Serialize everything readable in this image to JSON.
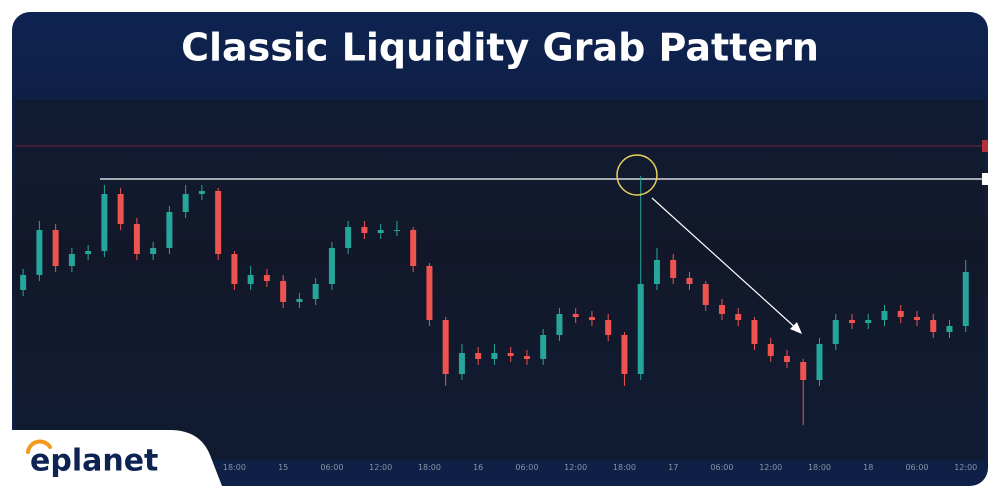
{
  "chart_data": {
    "type": "candlestick",
    "title": "Classic Liquidity Grab Pattern",
    "brand": "eplanet",
    "up_color": "#26a69a",
    "down_color": "#ef5350",
    "xlim": [
      0,
      119
    ],
    "ylim": [
      0,
      100
    ],
    "xticks": [
      {
        "value": 27,
        "label": "18:00"
      },
      {
        "value": 33,
        "label": "15"
      },
      {
        "value": 39,
        "label": "06:00"
      },
      {
        "value": 45,
        "label": "12:00"
      },
      {
        "value": 51,
        "label": "18:00"
      },
      {
        "value": 57,
        "label": "16"
      },
      {
        "value": 63,
        "label": "06:00"
      },
      {
        "value": 69,
        "label": "12:00"
      },
      {
        "value": 75,
        "label": "18:00"
      },
      {
        "value": 81,
        "label": "17"
      },
      {
        "value": 87,
        "label": "06:00"
      },
      {
        "value": 93,
        "label": "12:00"
      },
      {
        "value": 99,
        "label": "18:00"
      },
      {
        "value": 105,
        "label": "18"
      },
      {
        "value": 111,
        "label": "06:00"
      },
      {
        "value": 117,
        "label": "12:00"
      }
    ],
    "levels": [
      {
        "value": 87,
        "color": "#ffffff"
      },
      {
        "value": 98,
        "color": "#b2313a"
      }
    ],
    "x": [
      1,
      3,
      5,
      7,
      9,
      11,
      13,
      15,
      17,
      19,
      21,
      23,
      25,
      27,
      29,
      31,
      33,
      35,
      37,
      39,
      41,
      43,
      45,
      47,
      49,
      51,
      53,
      55,
      57,
      59,
      61,
      63,
      65,
      67,
      69,
      71,
      73,
      75,
      77,
      79,
      81,
      83,
      85,
      87,
      89,
      91,
      93,
      95,
      97,
      99,
      101,
      103,
      105,
      107,
      109,
      111,
      113,
      115,
      117
    ],
    "open": [
      50,
      55,
      70,
      58,
      62,
      63,
      82,
      72,
      62,
      64,
      76,
      82,
      83,
      62,
      52,
      55,
      53,
      46,
      47,
      52,
      64,
      71,
      69,
      70,
      70,
      58,
      40,
      22,
      29,
      27,
      29,
      28,
      27,
      35,
      42,
      41,
      40,
      35,
      22,
      52,
      60,
      54,
      52,
      45,
      42,
      40,
      32,
      28,
      26,
      20,
      32,
      40,
      39,
      40,
      43,
      41,
      40,
      36,
      38
    ],
    "high": [
      57,
      73,
      72,
      64,
      65,
      85,
      84,
      74,
      66,
      78,
      85,
      85,
      84,
      63,
      58,
      57,
      55,
      49,
      54,
      66,
      73,
      73,
      72,
      73,
      71,
      59,
      41,
      32,
      31,
      32,
      31,
      30,
      37,
      44,
      44,
      43,
      42,
      36,
      88,
      64,
      62,
      56,
      53,
      47,
      44,
      41,
      34,
      30,
      27,
      34,
      42,
      42,
      42,
      45,
      45,
      43,
      42,
      40,
      60
    ],
    "low": [
      48,
      53,
      56,
      56,
      60,
      61,
      70,
      60,
      60,
      62,
      74,
      80,
      60,
      50,
      50,
      51,
      44,
      44,
      45,
      50,
      62,
      67,
      67,
      68,
      56,
      38,
      18,
      20,
      25,
      25,
      26,
      25,
      25,
      33,
      39,
      38,
      33,
      18,
      20,
      50,
      52,
      50,
      43,
      40,
      38,
      30,
      26,
      24,
      5,
      18,
      30,
      37,
      37,
      38,
      39,
      38,
      34,
      34,
      36
    ],
    "close": [
      55,
      70,
      58,
      62,
      63,
      82,
      72,
      62,
      64,
      76,
      82,
      83,
      62,
      52,
      55,
      53,
      46,
      47,
      52,
      64,
      71,
      69,
      70,
      70,
      58,
      40,
      22,
      29,
      27,
      29,
      28,
      27,
      35,
      42,
      41,
      40,
      35,
      22,
      52,
      60,
      54,
      52,
      45,
      42,
      40,
      32,
      28,
      26,
      20,
      32,
      40,
      39,
      40,
      43,
      41,
      40,
      36,
      38,
      56
    ]
  }
}
